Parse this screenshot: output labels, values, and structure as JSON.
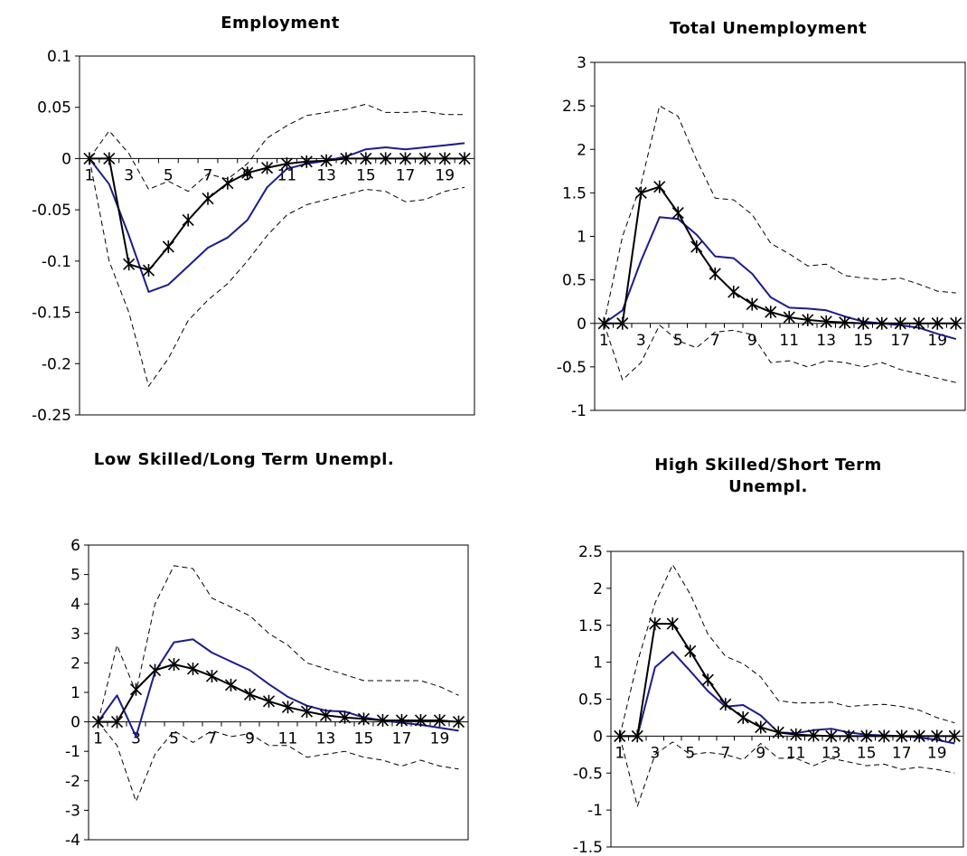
{
  "chart_data": [
    {
      "type": "line",
      "title": "Employment",
      "x": [
        1,
        2,
        3,
        4,
        5,
        6,
        7,
        8,
        9,
        10,
        11,
        12,
        13,
        14,
        15,
        16,
        17,
        18,
        19,
        20
      ],
      "xtick_labels": [
        "1",
        "3",
        "5",
        "7",
        "9",
        "11",
        "13",
        "15",
        "17",
        "19"
      ],
      "ylim": [
        -0.25,
        0.1
      ],
      "yticks": [
        "0.1",
        "0.05",
        "0",
        "-0.05",
        "-0.1",
        "-0.15",
        "-0.2",
        "-0.25"
      ],
      "series": [
        {
          "style": "blue-line",
          "color": "#1c1c8c",
          "values": [
            0,
            -0.025,
            -0.075,
            -0.13,
            -0.123,
            -0.105,
            -0.087,
            -0.077,
            -0.06,
            -0.028,
            -0.01,
            -0.005,
            -0.002,
            0.002,
            0.009,
            0.011,
            0.009,
            0.011,
            0.013,
            0.015
          ]
        },
        {
          "style": "star-line",
          "color": "#000000",
          "values": [
            0,
            0,
            -0.103,
            -0.109,
            -0.086,
            -0.06,
            -0.039,
            -0.024,
            -0.014,
            -0.009,
            -0.005,
            -0.003,
            -0.002,
            0,
            0,
            0,
            0,
            0,
            0,
            0
          ]
        },
        {
          "style": "dashed-upper",
          "color": "#000000",
          "values": [
            0,
            0.027,
            0.005,
            -0.03,
            -0.022,
            -0.032,
            -0.015,
            -0.02,
            -0.005,
            0.02,
            0.032,
            0.042,
            0.045,
            0.048,
            0.053,
            0.045,
            0.045,
            0.046,
            0.043,
            0.043
          ]
        },
        {
          "style": "dashed-lower",
          "color": "#000000",
          "values": [
            0,
            -0.1,
            -0.15,
            -0.222,
            -0.195,
            -0.158,
            -0.138,
            -0.122,
            -0.1,
            -0.075,
            -0.055,
            -0.045,
            -0.04,
            -0.035,
            -0.03,
            -0.032,
            -0.042,
            -0.04,
            -0.032,
            -0.028
          ]
        }
      ]
    },
    {
      "type": "line",
      "title": "Total Unemployment",
      "x": [
        1,
        2,
        3,
        4,
        5,
        6,
        7,
        8,
        9,
        10,
        11,
        12,
        13,
        14,
        15,
        16,
        17,
        18,
        19,
        20
      ],
      "xtick_labels": [
        "1",
        "3",
        "5",
        "7",
        "9",
        "11",
        "13",
        "15",
        "17",
        "19"
      ],
      "ylim": [
        -1,
        3
      ],
      "yticks": [
        "3",
        "2.5",
        "2",
        "1.5",
        "1",
        "0.5",
        "0",
        "-0.5",
        "-1"
      ],
      "series": [
        {
          "style": "blue-line",
          "color": "#1c1c8c",
          "values": [
            0,
            0.15,
            0.72,
            1.22,
            1.2,
            1.02,
            0.77,
            0.75,
            0.57,
            0.3,
            0.18,
            0.17,
            0.15,
            0.08,
            0.02,
            0.0,
            -0.02,
            -0.05,
            -0.12,
            -0.18
          ]
        },
        {
          "style": "star-line",
          "color": "#000000",
          "values": [
            0,
            0,
            1.5,
            1.57,
            1.27,
            0.88,
            0.57,
            0.36,
            0.22,
            0.13,
            0.07,
            0.04,
            0.02,
            0.01,
            0,
            0,
            0,
            0,
            0,
            0
          ]
        },
        {
          "style": "dashed-upper",
          "color": "#000000",
          "values": [
            0,
            1.0,
            1.6,
            2.5,
            2.38,
            1.88,
            1.44,
            1.42,
            1.25,
            0.92,
            0.8,
            0.66,
            0.68,
            0.55,
            0.52,
            0.5,
            0.52,
            0.45,
            0.37,
            0.35
          ]
        },
        {
          "style": "dashed-lower",
          "color": "#000000",
          "values": [
            0,
            -0.65,
            -0.45,
            -0.02,
            -0.2,
            -0.28,
            -0.1,
            -0.08,
            -0.13,
            -0.45,
            -0.43,
            -0.5,
            -0.43,
            -0.45,
            -0.5,
            -0.45,
            -0.53,
            -0.58,
            -0.63,
            -0.68
          ]
        }
      ]
    },
    {
      "type": "line",
      "title": "Low Skilled/Long Term Unempl.",
      "x": [
        1,
        2,
        3,
        4,
        5,
        6,
        7,
        8,
        9,
        10,
        11,
        12,
        13,
        14,
        15,
        16,
        17,
        18,
        19,
        20
      ],
      "xtick_labels": [
        "1",
        "3",
        "5",
        "7",
        "9",
        "11",
        "13",
        "15",
        "17",
        "19"
      ],
      "ylim": [
        -4,
        6
      ],
      "yticks": [
        "6",
        "5",
        "4",
        "3",
        "2",
        "1",
        "0",
        "-1",
        "-2",
        "-3",
        "-4"
      ],
      "series": [
        {
          "style": "blue-line",
          "color": "#1c1c8c",
          "values": [
            0,
            0.9,
            -0.5,
            1.7,
            2.7,
            2.8,
            2.35,
            2.05,
            1.75,
            1.28,
            0.85,
            0.55,
            0.38,
            0.35,
            0.15,
            0.05,
            -0.03,
            -0.1,
            -0.2,
            -0.3
          ]
        },
        {
          "style": "star-line",
          "color": "#000000",
          "values": [
            0,
            0,
            1.1,
            1.75,
            1.95,
            1.8,
            1.55,
            1.25,
            0.93,
            0.7,
            0.5,
            0.35,
            0.22,
            0.15,
            0.1,
            0.05,
            0.05,
            0.05,
            0.05,
            0
          ]
        },
        {
          "style": "dashed-upper",
          "color": "#000000",
          "values": [
            0,
            2.6,
            1.0,
            4.0,
            5.3,
            5.2,
            4.2,
            3.9,
            3.6,
            3.0,
            2.6,
            2.0,
            1.8,
            1.6,
            1.4,
            1.4,
            1.4,
            1.4,
            1.2,
            0.9
          ]
        },
        {
          "style": "dashed-lower",
          "color": "#000000",
          "values": [
            0,
            -0.8,
            -2.7,
            -1.1,
            -0.3,
            -0.7,
            -0.3,
            -0.5,
            -0.4,
            -0.8,
            -0.8,
            -1.2,
            -1.1,
            -1.0,
            -1.2,
            -1.3,
            -1.5,
            -1.3,
            -1.5,
            -1.6
          ]
        }
      ]
    },
    {
      "type": "line",
      "title": "High Skilled/Short Term Unempl.",
      "x": [
        1,
        2,
        3,
        4,
        5,
        6,
        7,
        8,
        9,
        10,
        11,
        12,
        13,
        14,
        15,
        16,
        17,
        18,
        19,
        20
      ],
      "xtick_labels": [
        "1",
        "3",
        "5",
        "7",
        "9",
        "11",
        "13",
        "15",
        "17",
        "19"
      ],
      "ylim": [
        -1.5,
        2.5
      ],
      "yticks": [
        "2.5",
        "2",
        "1.5",
        "1",
        "0.5",
        "0",
        "-0.5",
        "-1",
        "-1.5"
      ],
      "series": [
        {
          "style": "blue-line",
          "color": "#1c1c8c",
          "values": [
            0,
            0,
            0.93,
            1.14,
            0.88,
            0.61,
            0.4,
            0.42,
            0.28,
            0.05,
            0.04,
            0.08,
            0.1,
            0.05,
            0.02,
            0.01,
            0.0,
            -0.02,
            -0.05,
            -0.1
          ]
        },
        {
          "style": "star-line",
          "color": "#000000",
          "values": [
            0,
            0,
            1.52,
            1.52,
            1.15,
            0.76,
            0.43,
            0.25,
            0.12,
            0.05,
            0.02,
            0.01,
            0,
            0,
            0,
            0,
            0,
            0,
            0,
            0
          ]
        },
        {
          "style": "dashed-upper",
          "color": "#000000",
          "values": [
            0,
            1.0,
            1.8,
            2.32,
            1.92,
            1.38,
            1.08,
            0.98,
            0.8,
            0.48,
            0.45,
            0.45,
            0.46,
            0.4,
            0.42,
            0.43,
            0.4,
            0.35,
            0.25,
            0.18
          ]
        },
        {
          "style": "dashed-lower",
          "color": "#000000",
          "values": [
            0,
            -0.95,
            -0.25,
            -0.08,
            -0.25,
            -0.22,
            -0.25,
            -0.32,
            -0.1,
            -0.3,
            -0.3,
            -0.4,
            -0.3,
            -0.35,
            -0.4,
            -0.38,
            -0.45,
            -0.42,
            -0.45,
            -0.5
          ]
        }
      ]
    }
  ]
}
